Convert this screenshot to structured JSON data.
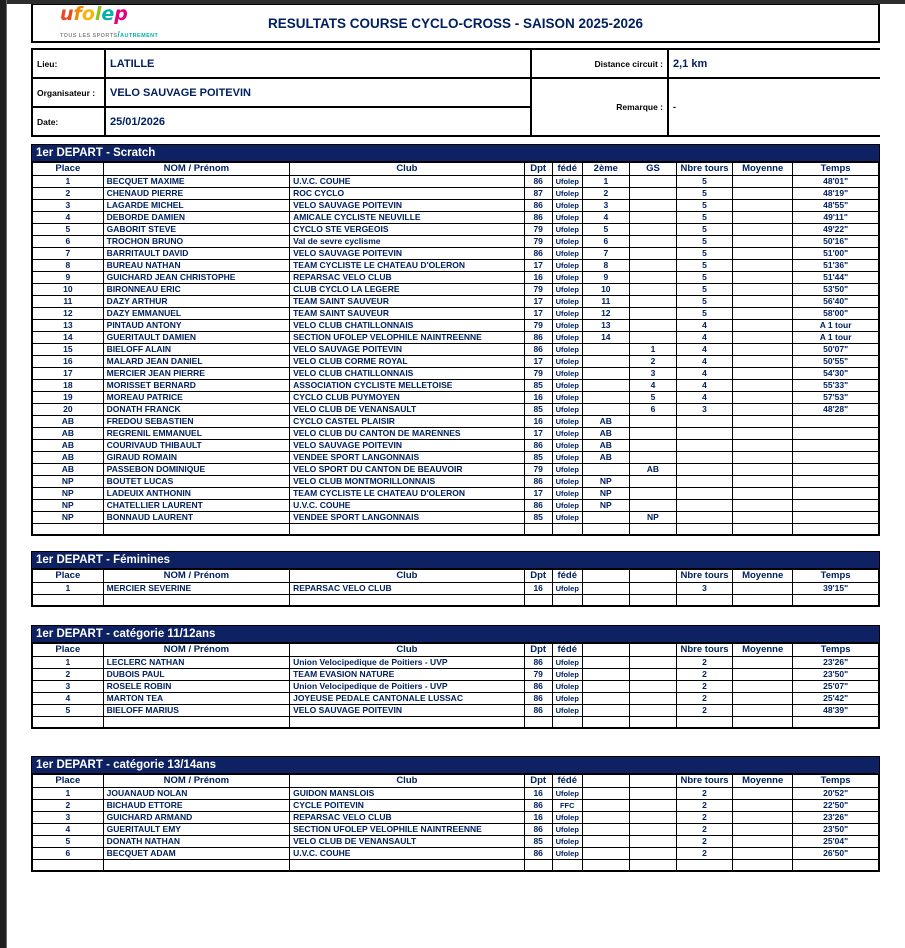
{
  "colors": {
    "band_navy": "#0e2263",
    "text_navy": "#002060",
    "logo_letter_colors": [
      "#e8491f",
      "#f18a00",
      "#f5b50a",
      "#8dc21f",
      "#00b2a9",
      "#e5007d"
    ],
    "tagline_gray": "#8a8a8a",
    "tagline_teal": "#00b2a9"
  },
  "header": {
    "logo": {
      "letters": [
        "u",
        "f",
        "o",
        "l",
        "e",
        "p"
      ],
      "tagline_left": "TOUS LES SPORTS",
      "tagline_right": "AUTREMENT"
    },
    "title": "RESULTATS COURSE CYCLO-CROSS - SAISON 2025-2026"
  },
  "info": {
    "lieu_label": "Lieu:",
    "lieu_value": "LATILLE",
    "organisateur_label": "Organisateur :",
    "organisateur_value": "VELO SAUVAGE POITEVIN",
    "date_label": "Date:",
    "date_value": "25/01/2026",
    "distance_label": "Distance circuit :",
    "distance_value": "2,1 km",
    "remarque_label": "Remarque :",
    "remarque_value": "-"
  },
  "tables": [
    {
      "title": "1er DEPART - Scratch",
      "headers": [
        "Place",
        "NOM / Prénom",
        "Club",
        "Dpt",
        "fédé",
        "2ème",
        "GS",
        "Nbre tours",
        "Moyenne",
        "Temps"
      ],
      "rows": [
        [
          "1",
          "BECQUET MAXIME",
          "U.V.C. COUHE",
          "86",
          "Ufolep",
          "1",
          "",
          "5",
          "",
          "48'01\""
        ],
        [
          "2",
          "CHENAUD PIERRE",
          "ROC CYCLO",
          "87",
          "Ufolep",
          "2",
          "",
          "5",
          "",
          "48'19\""
        ],
        [
          "3",
          "LAGARDE MICHEL",
          "VELO SAUVAGE POITEVIN",
          "86",
          "Ufolep",
          "3",
          "",
          "5",
          "",
          "48'55\""
        ],
        [
          "4",
          "DEBORDE DAMIEN",
          "AMICALE CYCLISTE NEUVILLE",
          "86",
          "Ufolep",
          "4",
          "",
          "5",
          "",
          "49'11\""
        ],
        [
          "5",
          "GABORIT STEVE",
          "CYCLO STE VERGEOIS",
          "79",
          "Ufolep",
          "5",
          "",
          "5",
          "",
          "49'22\""
        ],
        [
          "6",
          "TROCHON BRUNO",
          "Val de sevre cyclisme",
          "79",
          "Ufolep",
          "6",
          "",
          "5",
          "",
          "50'16\""
        ],
        [
          "7",
          "BARRITAULT DAVID",
          "VELO SAUVAGE POITEVIN",
          "86",
          "Ufolep",
          "7",
          "",
          "5",
          "",
          "51'00\""
        ],
        [
          "8",
          "BUREAU NATHAN",
          "TEAM CYCLISTE LE CHATEAU D'OLERON",
          "17",
          "Ufolep",
          "8",
          "",
          "5",
          "",
          "51'36\""
        ],
        [
          "9",
          "GUICHARD JEAN CHRISTOPHE",
          "REPARSAC VELO CLUB",
          "16",
          "Ufolep",
          "9",
          "",
          "5",
          "",
          "51'44\""
        ],
        [
          "10",
          "BIRONNEAU ERIC",
          "CLUB CYCLO LA LEGERE",
          "79",
          "Ufolep",
          "10",
          "",
          "5",
          "",
          "53'50\""
        ],
        [
          "11",
          "DAZY ARTHUR",
          "TEAM SAINT SAUVEUR",
          "17",
          "Ufolep",
          "11",
          "",
          "5",
          "",
          "56'40\""
        ],
        [
          "12",
          "DAZY EMMANUEL",
          "TEAM SAINT SAUVEUR",
          "17",
          "Ufolep",
          "12",
          "",
          "5",
          "",
          "58'00\""
        ],
        [
          "13",
          "PINTAUD ANTONY",
          "VELO CLUB CHATILLONNAIS",
          "79",
          "Ufolep",
          "13",
          "",
          "4",
          "",
          "A 1 tour"
        ],
        [
          "14",
          "GUERITAULT DAMIEN",
          "SECTION UFOLEP VELOPHILE NAINTREENNE",
          "86",
          "Ufolep",
          "14",
          "",
          "4",
          "",
          "A 1 tour"
        ],
        [
          "15",
          "BIELOFF ALAIN",
          "VELO SAUVAGE POITEVIN",
          "86",
          "Ufolep",
          "",
          "1",
          "4",
          "",
          "50'07\""
        ],
        [
          "16",
          "MALARD JEAN DANIEL",
          "VELO CLUB CORME ROYAL",
          "17",
          "Ufolep",
          "",
          "2",
          "4",
          "",
          "50'55\""
        ],
        [
          "17",
          "MERCIER JEAN PIERRE",
          "VELO CLUB CHATILLONNAIS",
          "79",
          "Ufolep",
          "",
          "3",
          "4",
          "",
          "54'30\""
        ],
        [
          "18",
          "MORISSET BERNARD",
          "ASSOCIATION CYCLISTE MELLETOISE",
          "85",
          "Ufolep",
          "",
          "4",
          "4",
          "",
          "55'33\""
        ],
        [
          "19",
          "MOREAU PATRICE",
          "CYCLO CLUB PUYMOYEN",
          "16",
          "Ufolep",
          "",
          "5",
          "4",
          "",
          "57'53\""
        ],
        [
          "20",
          "DONATH FRANCK",
          "VELO CLUB DE VENANSAULT",
          "85",
          "Ufolep",
          "",
          "6",
          "3",
          "",
          "48'28\""
        ],
        [
          "AB",
          "FREDOU SEBASTIEN",
          "CYCLO CASTEL PLAISIR",
          "16",
          "Ufolep",
          "AB",
          "",
          "",
          "",
          ""
        ],
        [
          "AB",
          "REGRENIL EMMANUEL",
          "VELO CLUB DU CANTON DE MARENNES",
          "17",
          "Ufolep",
          "AB",
          "",
          "",
          "",
          ""
        ],
        [
          "AB",
          "COURIVAUD THIBAULT",
          "VELO SAUVAGE POITEVIN",
          "86",
          "Ufolep",
          "AB",
          "",
          "",
          "",
          ""
        ],
        [
          "AB",
          "GIRAUD ROMAIN",
          "VENDEE SPORT LANGONNAIS",
          "85",
          "Ufolep",
          "AB",
          "",
          "",
          "",
          ""
        ],
        [
          "AB",
          "PASSEBON DOMINIQUE",
          "VELO SPORT DU CANTON DE BEAUVOIR",
          "79",
          "Ufolep",
          "",
          "AB",
          "",
          "",
          ""
        ],
        [
          "NP",
          "BOUTET LUCAS",
          "VELO CLUB MONTMORILLONNAIS",
          "86",
          "Ufolep",
          "NP",
          "",
          "",
          "",
          ""
        ],
        [
          "NP",
          "LADEUIX ANTHONIN",
          "TEAM CYCLISTE LE CHATEAU D'OLERON",
          "17",
          "Ufolep",
          "NP",
          "",
          "",
          "",
          ""
        ],
        [
          "NP",
          "CHATELLIER LAURENT",
          "U.V.C. COUHE",
          "86",
          "Ufolep",
          "NP",
          "",
          "",
          "",
          ""
        ],
        [
          "NP",
          "BONNAUD LAURENT",
          "VENDEE SPORT LANGONNAIS",
          "85",
          "Ufolep",
          "",
          "NP",
          "",
          "",
          ""
        ],
        [
          "",
          "",
          "",
          "",
          "",
          "",
          "",
          "",
          "",
          ""
        ]
      ]
    },
    {
      "title": "1er DEPART - Féminines",
      "headers": [
        "Place",
        "NOM / Prénom",
        "Club",
        "Dpt",
        "fédé",
        "",
        "",
        "Nbre tours",
        "Moyenne",
        "Temps"
      ],
      "rows": [
        [
          "1",
          "MERCIER SEVERINE",
          "REPARSAC VELO CLUB",
          "16",
          "Ufolep",
          "",
          "",
          "3",
          "",
          "39'15\""
        ],
        [
          "",
          "",
          "",
          "",
          "",
          "",
          "",
          "",
          "",
          ""
        ]
      ]
    },
    {
      "title": "1er DEPART - catégorie 11/12ans",
      "headers": [
        "Place",
        "NOM / Prénom",
        "Club",
        "Dpt",
        "fédé",
        "",
        "",
        "Nbre tours",
        "Moyenne",
        "Temps"
      ],
      "rows": [
        [
          "1",
          "LECLERC NATHAN",
          "Union Velocipedique de Poitiers - UVP",
          "86",
          "Ufolep",
          "",
          "",
          "2",
          "",
          "23'26\""
        ],
        [
          "2",
          "DUBOIS PAUL",
          "TEAM EVASION NATURE",
          "79",
          "Ufolep",
          "",
          "",
          "2",
          "",
          "23'50\""
        ],
        [
          "3",
          "ROSELE ROBIN",
          "Union Velocipedique de Poitiers - UVP",
          "86",
          "Ufolep",
          "",
          "",
          "2",
          "",
          "25'07\""
        ],
        [
          "4",
          "MARTON TEA",
          "JOYEUSE PEDALE CANTONALE LUSSAC",
          "86",
          "Ufolep",
          "",
          "",
          "2",
          "",
          "25'42\""
        ],
        [
          "5",
          "BIELOFF MARIUS",
          "VELO SAUVAGE POITEVIN",
          "86",
          "Ufolep",
          "",
          "",
          "2",
          "",
          "48'39\""
        ],
        [
          "",
          "",
          "",
          "",
          "",
          "",
          "",
          "",
          "",
          ""
        ]
      ]
    },
    {
      "title": "1er DEPART - catégorie 13/14ans",
      "headers": [
        "Place",
        "NOM / Prénom",
        "Club",
        "Dpt",
        "fédé",
        "",
        "",
        "Nbre tours",
        "Moyenne",
        "Temps"
      ],
      "rows": [
        [
          "1",
          "JOUANAUD NOLAN",
          "GUIDON MANSLOIS",
          "16",
          "Ufolep",
          "",
          "",
          "2",
          "",
          "20'52\""
        ],
        [
          "2",
          "BICHAUD ETTORE",
          "CYCLE POITEVIN",
          "86",
          "FFC",
          "",
          "",
          "2",
          "",
          "22'50\""
        ],
        [
          "3",
          "GUICHARD ARMAND",
          "REPARSAC VELO CLUB",
          "16",
          "Ufolep",
          "",
          "",
          "2",
          "",
          "23'26\""
        ],
        [
          "4",
          "GUERITAULT EMY",
          "SECTION UFOLEP VELOPHILE NAINTREENNE",
          "86",
          "Ufolep",
          "",
          "",
          "2",
          "",
          "23'50\""
        ],
        [
          "5",
          "DONATH NATHAN",
          "VELO CLUB DE VENANSAULT",
          "85",
          "Ufolep",
          "",
          "",
          "2",
          "",
          "25'04\""
        ],
        [
          "6",
          "BECQUET ADAM",
          "U.V.C. COUHE",
          "86",
          "Ufolep",
          "",
          "",
          "2",
          "",
          "26'50\""
        ],
        [
          "",
          "",
          "",
          "",
          "",
          "",
          "",
          "",
          "",
          ""
        ]
      ]
    }
  ]
}
